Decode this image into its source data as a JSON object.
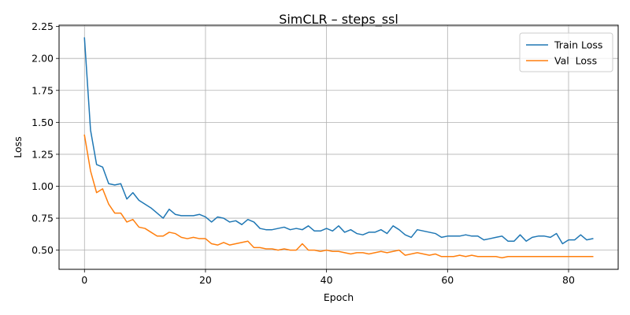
{
  "chart_data": {
    "type": "line",
    "title": "SimCLR – steps_ssl",
    "xlabel": "Epoch",
    "ylabel": "Loss",
    "xlim": [
      -4.2,
      88.2
    ],
    "ylim": [
      0.35,
      2.26
    ],
    "xticks": [
      0,
      20,
      40,
      60,
      80
    ],
    "xtick_labels": [
      "0",
      "20",
      "40",
      "60",
      "80"
    ],
    "yticks": [
      0.5,
      0.75,
      1.0,
      1.25,
      1.5,
      1.75,
      2.0,
      2.25
    ],
    "ytick_labels": [
      "0.50",
      "0.75",
      "1.00",
      "1.25",
      "1.50",
      "1.75",
      "2.00",
      "2.25"
    ],
    "grid": true,
    "legend_position": "top-right",
    "colors": {
      "train": "#1f77b4",
      "val": "#ff7f0e"
    },
    "x": [
      0,
      1,
      2,
      3,
      4,
      5,
      6,
      7,
      8,
      9,
      10,
      11,
      12,
      13,
      14,
      15,
      16,
      17,
      18,
      19,
      20,
      21,
      22,
      23,
      24,
      25,
      26,
      27,
      28,
      29,
      30,
      31,
      32,
      33,
      34,
      35,
      36,
      37,
      38,
      39,
      40,
      41,
      42,
      43,
      44,
      45,
      46,
      47,
      48,
      49,
      50,
      51,
      52,
      53,
      54,
      55,
      56,
      57,
      58,
      59,
      60,
      61,
      62,
      63,
      64,
      65,
      66,
      67,
      68,
      69,
      70,
      71,
      72,
      73,
      74,
      75,
      76,
      77,
      78,
      79,
      80,
      81,
      82,
      83,
      84
    ],
    "series": [
      {
        "name": "Train Loss",
        "values": [
          2.16,
          1.44,
          1.17,
          1.15,
          1.02,
          1.01,
          1.02,
          0.9,
          0.95,
          0.89,
          0.86,
          0.83,
          0.79,
          0.75,
          0.82,
          0.78,
          0.77,
          0.77,
          0.77,
          0.78,
          0.76,
          0.72,
          0.76,
          0.75,
          0.72,
          0.73,
          0.7,
          0.74,
          0.72,
          0.67,
          0.66,
          0.66,
          0.67,
          0.68,
          0.66,
          0.67,
          0.66,
          0.69,
          0.65,
          0.65,
          0.67,
          0.65,
          0.69,
          0.64,
          0.66,
          0.63,
          0.62,
          0.64,
          0.64,
          0.66,
          0.63,
          0.69,
          0.66,
          0.62,
          0.6,
          0.66,
          0.65,
          0.64,
          0.63,
          0.6,
          0.61,
          0.61,
          0.61,
          0.62,
          0.61,
          0.61,
          0.58,
          0.59,
          0.6,
          0.61,
          0.57,
          0.57,
          0.62,
          0.57,
          0.6,
          0.61,
          0.61,
          0.6,
          0.63,
          0.55,
          0.58,
          0.58,
          0.62,
          0.58,
          0.59
        ]
      },
      {
        "name": "Val  Loss",
        "values": [
          1.4,
          1.12,
          0.95,
          0.98,
          0.86,
          0.79,
          0.79,
          0.72,
          0.74,
          0.68,
          0.67,
          0.64,
          0.61,
          0.61,
          0.64,
          0.63,
          0.6,
          0.59,
          0.6,
          0.59,
          0.59,
          0.55,
          0.54,
          0.56,
          0.54,
          0.55,
          0.56,
          0.57,
          0.52,
          0.52,
          0.51,
          0.51,
          0.5,
          0.51,
          0.5,
          0.5,
          0.55,
          0.5,
          0.5,
          0.49,
          0.5,
          0.49,
          0.49,
          0.48,
          0.47,
          0.48,
          0.48,
          0.47,
          0.48,
          0.49,
          0.48,
          0.49,
          0.5,
          0.46,
          0.47,
          0.48,
          0.47,
          0.46,
          0.47,
          0.45,
          0.45,
          0.45,
          0.46,
          0.45,
          0.46,
          0.45,
          0.45,
          0.45,
          0.45,
          0.44,
          0.45,
          0.45,
          0.45,
          0.45,
          0.45,
          0.45,
          0.45,
          0.45,
          0.45,
          0.45,
          0.45,
          0.45,
          0.45,
          0.45,
          0.45
        ]
      }
    ]
  }
}
